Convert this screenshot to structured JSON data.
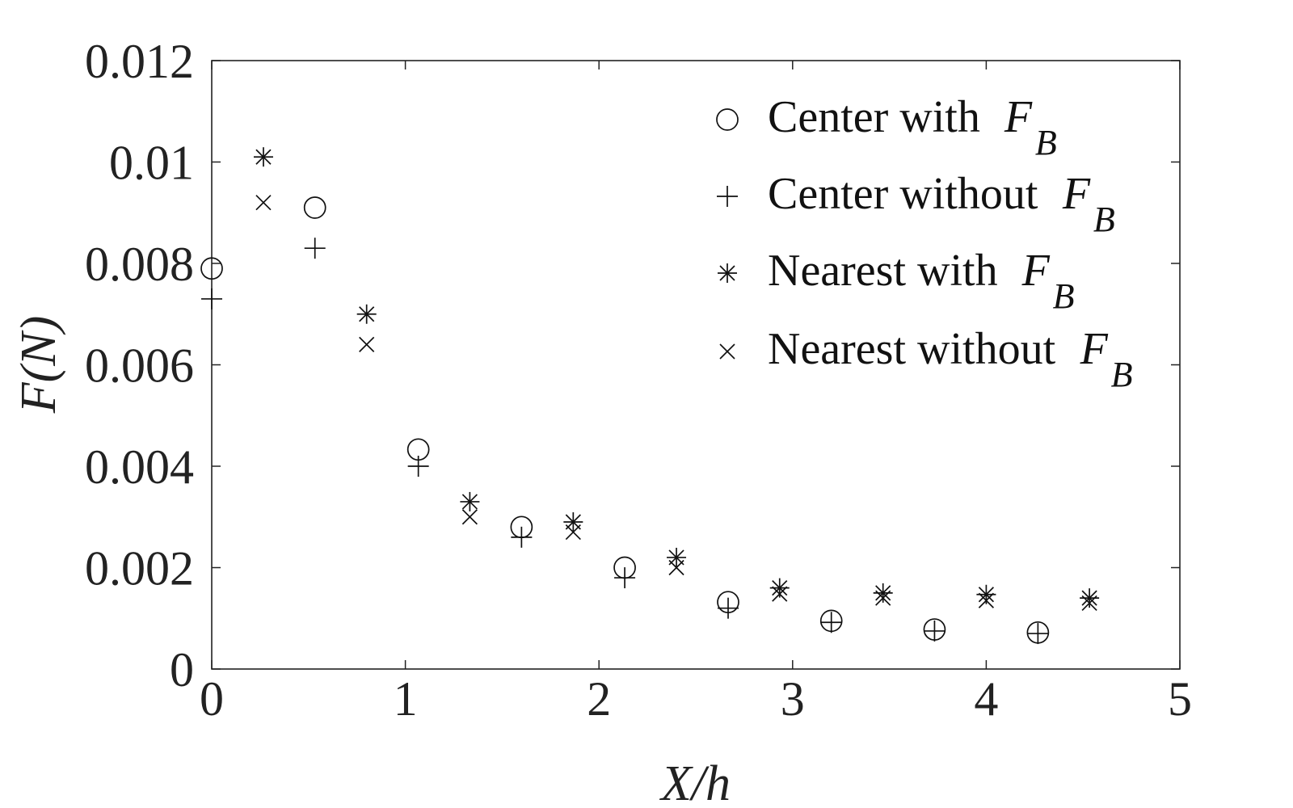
{
  "chart_data": {
    "type": "scatter",
    "title": "",
    "xlabel": "X/h",
    "ylabel": "F(N)",
    "xlim": [
      0,
      5
    ],
    "ylim": [
      0,
      0.012
    ],
    "xticks": [
      "0",
      "1",
      "2",
      "3",
      "4",
      "5"
    ],
    "yticks": [
      "0",
      "0.002",
      "0.004",
      "0.006",
      "0.008",
      "0.01",
      "0.012"
    ],
    "grid": false,
    "legend_position": "top-right",
    "legend_symbol": "F",
    "legend_subscript": "B",
    "series": [
      {
        "name": "Center with",
        "marker": "circle",
        "x": [
          0,
          0.533,
          1.067,
          1.6,
          2.133,
          2.667,
          3.2,
          3.733,
          4.267
        ],
        "y": [
          0.0079,
          0.0091,
          0.00433,
          0.0028,
          0.002,
          0.00132,
          0.00095,
          0.00078,
          0.00072
        ]
      },
      {
        "name": "Center without",
        "marker": "plus",
        "x": [
          0,
          0.533,
          1.067,
          1.6,
          2.133,
          2.667,
          3.2,
          3.733,
          4.267
        ],
        "y": [
          0.0073,
          0.0083,
          0.004,
          0.0026,
          0.0018,
          0.0012,
          0.00092,
          0.00075,
          0.0007
        ]
      },
      {
        "name": "Nearest with",
        "marker": "asterisk",
        "x": [
          0.267,
          0.8,
          1.333,
          1.867,
          2.4,
          2.933,
          3.467,
          4.0,
          4.533
        ],
        "y": [
          0.0101,
          0.007,
          0.0033,
          0.0029,
          0.0022,
          0.0016,
          0.0015,
          0.00147,
          0.0014
        ]
      },
      {
        "name": "Nearest without",
        "marker": "cross",
        "x": [
          0.267,
          0.8,
          1.333,
          1.867,
          2.4,
          2.933,
          3.467,
          4.0,
          4.533
        ],
        "y": [
          0.0092,
          0.0064,
          0.003,
          0.0027,
          0.002,
          0.00148,
          0.0014,
          0.00135,
          0.0013
        ]
      }
    ]
  }
}
